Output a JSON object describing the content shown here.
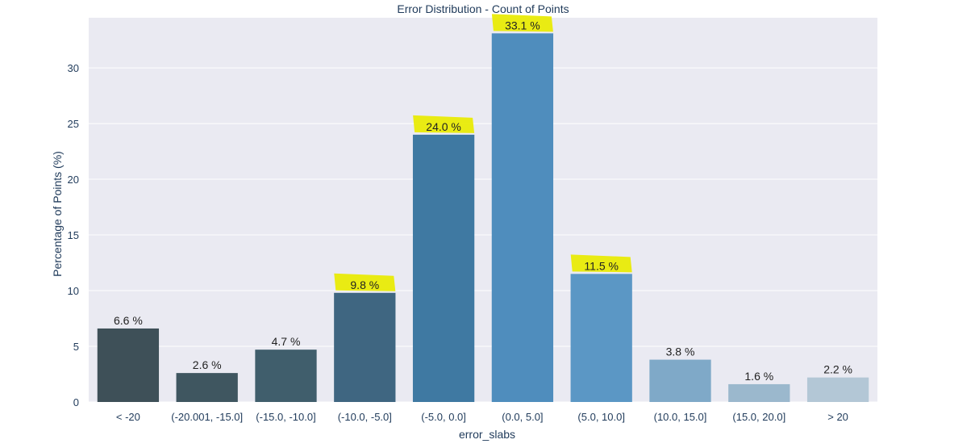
{
  "chart_data": {
    "type": "bar",
    "title": "Error Distribution - Count of Points",
    "xlabel": "error_slabs",
    "ylabel": "Percentage of Points (%)",
    "categories": [
      "< -20",
      "(-20.001, -15.0]",
      "(-15.0, -10.0]",
      "(-10.0, -5.0]",
      "(-5.0, 0.0]",
      "(0.0, 5.0]",
      "(5.0, 10.0]",
      "(10.0, 15.0]",
      "(15.0, 20.0]",
      "> 20"
    ],
    "values": [
      6.6,
      2.6,
      4.7,
      9.8,
      24.0,
      33.1,
      11.5,
      3.8,
      1.6,
      2.2
    ],
    "data_labels": [
      "6.6 %",
      "2.6 %",
      "4.7 %",
      "9.8 %",
      "24.0 %",
      "33.1 %",
      "11.5 %",
      "3.8 %",
      "1.6 %",
      "2.2 %"
    ],
    "highlighted": [
      false,
      false,
      false,
      true,
      true,
      true,
      true,
      false,
      false,
      false
    ],
    "ylim": [
      0,
      34.5
    ],
    "yticks": [
      0,
      5,
      10,
      15,
      20,
      25,
      30
    ],
    "grid": true,
    "legend": "none",
    "colors": {
      "plot_background": "#eaeaf2",
      "grid": "#ffffff",
      "bars": [
        "#3e5058",
        "#3f5660",
        "#405e6c",
        "#3f6681",
        "#3f79a2",
        "#4f8dbd",
        "#5b97c5",
        "#7fa9c8",
        "#9bb8cd",
        "#b3c7d6"
      ],
      "highlight": "#e8ea00",
      "text": "#1f3a5a"
    }
  }
}
